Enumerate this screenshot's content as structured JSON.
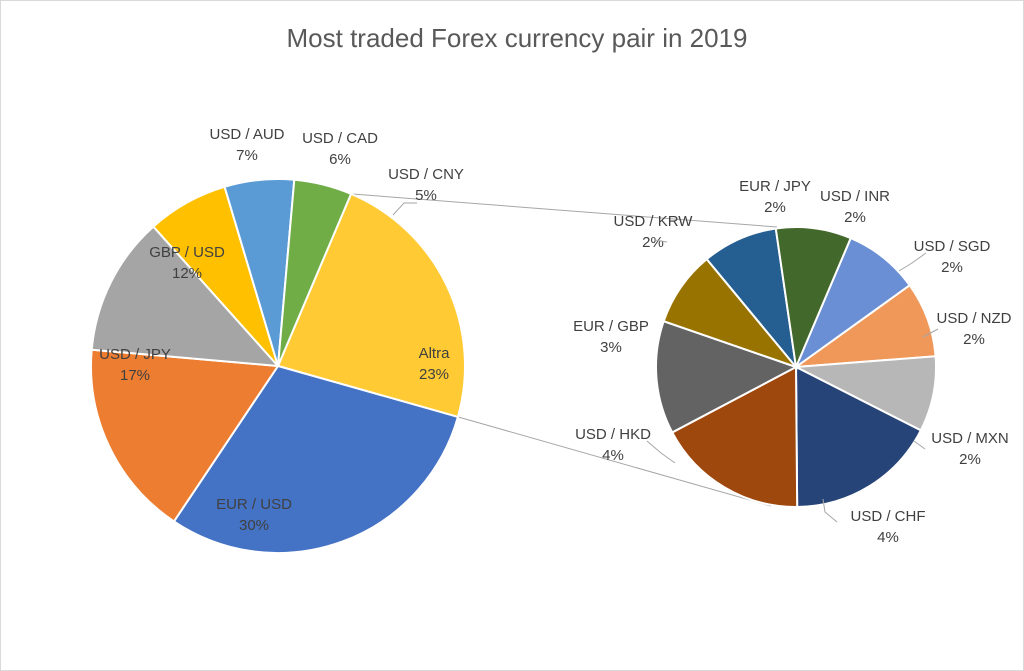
{
  "chart_data": {
    "type": "pie",
    "subtype": "pie-of-pie",
    "title": "Most traded Forex currency pair in 2019",
    "main": [
      {
        "label": "Altra",
        "value": 23,
        "value_label": "23%",
        "color": "#FFCA33"
      },
      {
        "label": "EUR / USD",
        "value": 30,
        "value_label": "30%",
        "color": "#4472C4"
      },
      {
        "label": "USD / JPY",
        "value": 17,
        "value_label": "17%",
        "color": "#ED7D31"
      },
      {
        "label": "GBP / USD",
        "value": 12,
        "value_label": "12%",
        "color": "#A5A5A5"
      },
      {
        "label": "USD / AUD",
        "value": 7,
        "value_label": "7%",
        "color": "#FFC000"
      },
      {
        "label": "USD / CAD",
        "value": 6,
        "value_label": "6%",
        "color": "#5B9BD5"
      },
      {
        "label": "USD / CNY",
        "value": 5,
        "value_label": "5%",
        "color": "#70AD47"
      }
    ],
    "secondary": [
      {
        "label": "USD / SGD",
        "value": 2,
        "value_label": "2%",
        "color": "#6B8FD4"
      },
      {
        "label": "USD / NZD",
        "value": 2,
        "value_label": "2%",
        "color": "#F0985A"
      },
      {
        "label": "USD / MXN",
        "value": 2,
        "value_label": "2%",
        "color": "#B7B7B7"
      },
      {
        "label": "USD / CHF",
        "value": 4,
        "value_label": "4%",
        "color": "#264478"
      },
      {
        "label": "USD / HKD",
        "value": 4,
        "value_label": "4%",
        "color": "#9E480E"
      },
      {
        "label": "EUR / GBP",
        "value": 3,
        "value_label": "3%",
        "color": "#636363"
      },
      {
        "label": "USD / KRW",
        "value": 2,
        "value_label": "2%",
        "color": "#997300"
      },
      {
        "label": "EUR / JPY",
        "value": 2,
        "value_label": "2%",
        "color": "#255E91"
      },
      {
        "label": "USD / INR",
        "value": 2,
        "value_label": "2%",
        "color": "#43682B"
      }
    ],
    "legend": "none"
  }
}
